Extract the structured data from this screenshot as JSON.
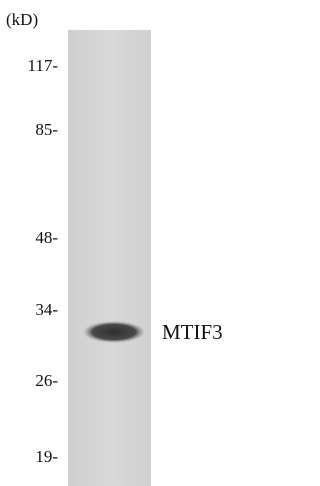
{
  "unit_label": "(kD)",
  "markers": [
    "117-",
    "85-",
    "48-",
    "34-",
    "26-",
    "19-"
  ],
  "band_label": "MTIF3"
}
